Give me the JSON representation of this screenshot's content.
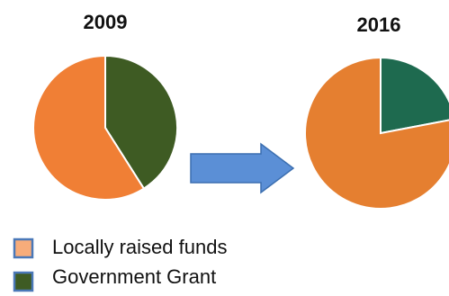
{
  "chart_data": [
    {
      "type": "pie",
      "title": "2009",
      "series": [
        {
          "name": "Locally raised funds",
          "value": 59,
          "color": "#F07F35"
        },
        {
          "name": "Government Grant",
          "value": 41,
          "color": "#3E5B23"
        }
      ]
    },
    {
      "type": "pie",
      "title": "2016",
      "series": [
        {
          "name": "Locally raised funds",
          "value": 78,
          "color": "#E57F30"
        },
        {
          "name": "Government Grant",
          "value": 22,
          "color": "#1E6A4F"
        }
      ]
    }
  ],
  "legend": [
    {
      "label": "Locally raised funds",
      "swatch_fill": "#F7AC7A",
      "swatch_border": "#4A78B8"
    },
    {
      "label": "Government Grant",
      "swatch_fill": "#3E5B23",
      "swatch_border": "#4A78B8"
    }
  ],
  "arrow": {
    "color": "#5B8FD6",
    "border": "#3C6FB0",
    "icon": "right-arrow-icon"
  }
}
